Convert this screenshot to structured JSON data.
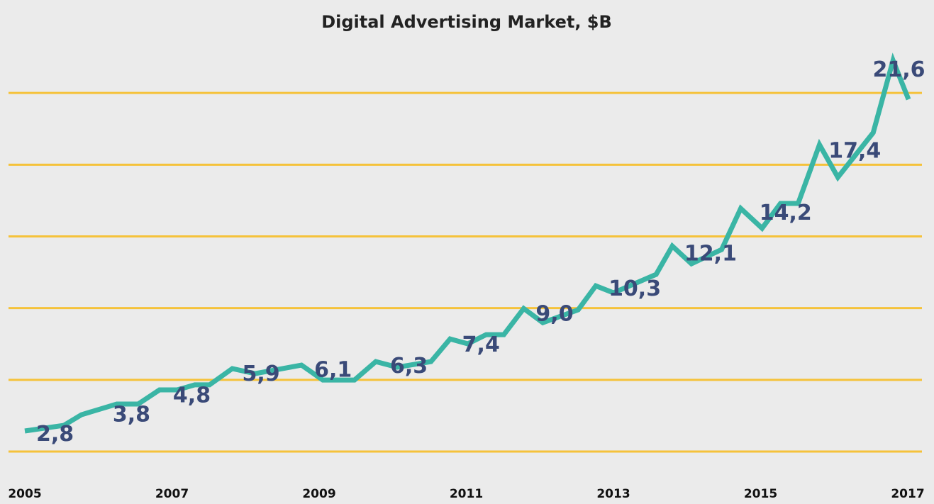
{
  "chart_data": {
    "type": "line",
    "title": "Digital Advertising Market, $B",
    "xlim": [
      2005,
      2017
    ],
    "xticks": [
      2005,
      2007,
      2009,
      2011,
      2013,
      2015,
      2017
    ],
    "ylim": [
      0,
      22.2
    ],
    "yticks": [
      1.5,
      5.2,
      8.9,
      12.6,
      16.3,
      20
    ],
    "grid": true,
    "grid_color": "#f5c23a",
    "series": [
      {
        "color": "#3ab5a5",
        "x": [
          2005.0,
          2005.53,
          2005.77,
          2006.25,
          2006.54,
          2006.83,
          2007.07,
          2007.31,
          2007.51,
          2007.82,
          2008.13,
          2008.76,
          2009.05,
          2009.48,
          2009.77,
          2010.06,
          2010.52,
          2010.78,
          2011.02,
          2011.27,
          2011.51,
          2011.78,
          2012.04,
          2012.52,
          2012.76,
          2013.0,
          2013.58,
          2013.8,
          2014.06,
          2014.47,
          2014.73,
          2015.02,
          2015.27,
          2015.51,
          2015.8,
          2016.05,
          2016.53,
          2016.8,
          2017.01
        ],
        "values": [
          2.56,
          2.85,
          3.4,
          3.95,
          3.95,
          4.68,
          4.68,
          4.94,
          4.94,
          5.78,
          5.52,
          5.96,
          5.19,
          5.19,
          6.14,
          5.85,
          6.14,
          7.31,
          7.06,
          7.53,
          7.53,
          8.88,
          8.15,
          8.81,
          10.05,
          9.69,
          10.64,
          12.1,
          11.19,
          11.92,
          14.04,
          13.02,
          14.3,
          14.3,
          17.33,
          15.65,
          17.95,
          21.68,
          19.67
        ]
      }
    ],
    "annual": {
      "color": "#3a4a78",
      "x": [
        2005.41,
        2006.45,
        2007.27,
        2008.21,
        2009.19,
        2010.22,
        2011.2,
        2012.2,
        2013.29,
        2014.32,
        2015.34,
        2016.28,
        2016.88
      ],
      "values": [
        2.8,
        3.8,
        4.8,
        5.9,
        6.1,
        6.3,
        7.4,
        9.0,
        10.3,
        12.1,
        14.2,
        17.4,
        21.6
      ],
      "value_labels": [
        "2,8",
        "3,8",
        "4,8",
        "5,9",
        "6,1",
        "6,3",
        "7,4",
        "9,0",
        "10,3",
        "12,1",
        "14,2",
        "17,4",
        "21,6"
      ]
    }
  }
}
